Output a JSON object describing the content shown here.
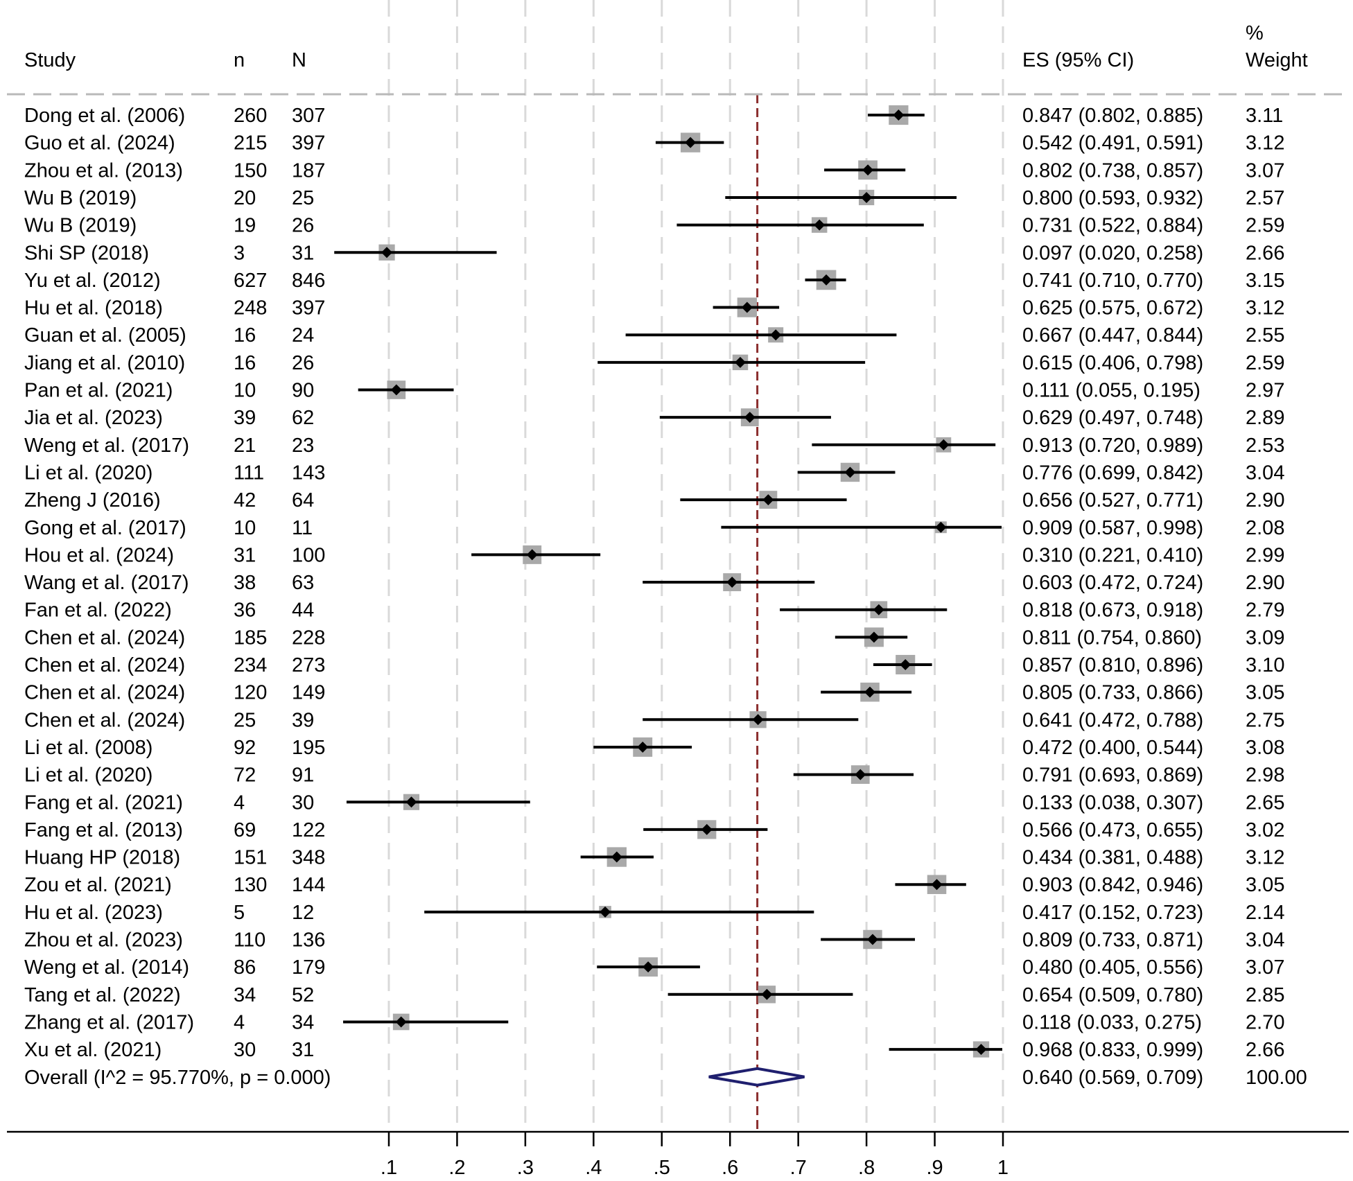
{
  "headers": {
    "study": "Study",
    "n": "n",
    "N": "N",
    "es": "ES (95% CI)",
    "weight_line1": "%",
    "weight_line2": "Weight"
  },
  "colors": {
    "marker": "#000000",
    "weight_box": "#a9a9a9",
    "ci_line": "#000000",
    "null_line": "#8b2e2e",
    "grid": "#d9d9d9",
    "diamond": "#1f1f6e"
  },
  "chart_data": {
    "type": "forest",
    "xlim": [
      0.1,
      1.0
    ],
    "ticks": [
      0.1,
      0.2,
      0.3,
      0.4,
      0.5,
      0.6,
      0.7,
      0.8,
      0.9,
      1.0
    ],
    "tick_labels": [
      ".1",
      ".2",
      ".3",
      ".4",
      ".5",
      ".6",
      ".7",
      ".8",
      ".9",
      "1"
    ],
    "studies": [
      {
        "study": "Dong et al. (2006)",
        "n": "260",
        "N": "307",
        "es": 0.847,
        "lo": 0.802,
        "hi": 0.885,
        "es_text": "0.847 (0.802, 0.885)",
        "weight": "3.11"
      },
      {
        "study": "Guo et al. (2024)",
        "n": "215",
        "N": "397",
        "es": 0.542,
        "lo": 0.491,
        "hi": 0.591,
        "es_text": "0.542 (0.491, 0.591)",
        "weight": "3.12"
      },
      {
        "study": "Zhou et al. (2013)",
        "n": "150",
        "N": "187",
        "es": 0.802,
        "lo": 0.738,
        "hi": 0.857,
        "es_text": "0.802 (0.738, 0.857)",
        "weight": "3.07"
      },
      {
        "study": "Wu B (2019)",
        "n": "20",
        "N": "25",
        "es": 0.8,
        "lo": 0.593,
        "hi": 0.932,
        "es_text": "0.800 (0.593, 0.932)",
        "weight": "2.57"
      },
      {
        "study": "Wu B (2019)",
        "n": "19",
        "N": "26",
        "es": 0.731,
        "lo": 0.522,
        "hi": 0.884,
        "es_text": "0.731 (0.522, 0.884)",
        "weight": "2.59"
      },
      {
        "study": "Shi SP (2018)",
        "n": "3",
        "N": "31",
        "es": 0.097,
        "lo": 0.02,
        "hi": 0.258,
        "es_text": "0.097 (0.020, 0.258)",
        "weight": "2.66"
      },
      {
        "study": "Yu et al. (2012)",
        "n": "627",
        "N": "846",
        "es": 0.741,
        "lo": 0.71,
        "hi": 0.77,
        "es_text": "0.741 (0.710, 0.770)",
        "weight": "3.15"
      },
      {
        "study": "Hu et al. (2018)",
        "n": "248",
        "N": "397",
        "es": 0.625,
        "lo": 0.575,
        "hi": 0.672,
        "es_text": "0.625 (0.575, 0.672)",
        "weight": "3.12"
      },
      {
        "study": "Guan et al. (2005)",
        "n": "16",
        "N": "24",
        "es": 0.667,
        "lo": 0.447,
        "hi": 0.844,
        "es_text": "0.667 (0.447, 0.844)",
        "weight": "2.55"
      },
      {
        "study": "Jiang et al. (2010)",
        "n": "16",
        "N": "26",
        "es": 0.615,
        "lo": 0.406,
        "hi": 0.798,
        "es_text": "0.615 (0.406, 0.798)",
        "weight": "2.59"
      },
      {
        "study": "Pan et al. (2021)",
        "n": "10",
        "N": "90",
        "es": 0.111,
        "lo": 0.055,
        "hi": 0.195,
        "es_text": "0.111 (0.055, 0.195)",
        "weight": "2.97"
      },
      {
        "study": "Jia et al. (2023)",
        "n": "39",
        "N": "62",
        "es": 0.629,
        "lo": 0.497,
        "hi": 0.748,
        "es_text": "0.629 (0.497, 0.748)",
        "weight": "2.89"
      },
      {
        "study": "Weng et al. (2017)",
        "n": "21",
        "N": "23",
        "es": 0.913,
        "lo": 0.72,
        "hi": 0.989,
        "es_text": "0.913 (0.720, 0.989)",
        "weight": "2.53"
      },
      {
        "study": "Li et al. (2020)",
        "n": "111",
        "N": "143",
        "es": 0.776,
        "lo": 0.699,
        "hi": 0.842,
        "es_text": "0.776 (0.699, 0.842)",
        "weight": "3.04"
      },
      {
        "study": "Zheng J (2016)",
        "n": "42",
        "N": "64",
        "es": 0.656,
        "lo": 0.527,
        "hi": 0.771,
        "es_text": "0.656 (0.527, 0.771)",
        "weight": "2.90"
      },
      {
        "study": "Gong et al. (2017)",
        "n": "10",
        "N": "11",
        "es": 0.909,
        "lo": 0.587,
        "hi": 0.998,
        "es_text": "0.909 (0.587, 0.998)",
        "weight": "2.08"
      },
      {
        "study": "Hou et al. (2024)",
        "n": "31",
        "N": "100",
        "es": 0.31,
        "lo": 0.221,
        "hi": 0.41,
        "es_text": "0.310 (0.221, 0.410)",
        "weight": "2.99"
      },
      {
        "study": "Wang et al. (2017)",
        "n": "38",
        "N": "63",
        "es": 0.603,
        "lo": 0.472,
        "hi": 0.724,
        "es_text": "0.603 (0.472, 0.724)",
        "weight": "2.90"
      },
      {
        "study": "Fan et al. (2022)",
        "n": "36",
        "N": "44",
        "es": 0.818,
        "lo": 0.673,
        "hi": 0.918,
        "es_text": "0.818 (0.673, 0.918)",
        "weight": "2.79"
      },
      {
        "study": "Chen et al. (2024)",
        "n": "185",
        "N": "228",
        "es": 0.811,
        "lo": 0.754,
        "hi": 0.86,
        "es_text": "0.811 (0.754, 0.860)",
        "weight": "3.09"
      },
      {
        "study": "Chen et al. (2024)",
        "n": "234",
        "N": "273",
        "es": 0.857,
        "lo": 0.81,
        "hi": 0.896,
        "es_text": "0.857 (0.810, 0.896)",
        "weight": "3.10"
      },
      {
        "study": "Chen et al. (2024)",
        "n": "120",
        "N": "149",
        "es": 0.805,
        "lo": 0.733,
        "hi": 0.866,
        "es_text": "0.805 (0.733, 0.866)",
        "weight": "3.05"
      },
      {
        "study": "Chen et al. (2024)",
        "n": "25",
        "N": "39",
        "es": 0.641,
        "lo": 0.472,
        "hi": 0.788,
        "es_text": "0.641 (0.472, 0.788)",
        "weight": "2.75"
      },
      {
        "study": "Li et al. (2008)",
        "n": "92",
        "N": "195",
        "es": 0.472,
        "lo": 0.4,
        "hi": 0.544,
        "es_text": "0.472 (0.400, 0.544)",
        "weight": "3.08"
      },
      {
        "study": "Li et al. (2020)",
        "n": "72",
        "N": "91",
        "es": 0.791,
        "lo": 0.693,
        "hi": 0.869,
        "es_text": "0.791 (0.693, 0.869)",
        "weight": "2.98"
      },
      {
        "study": "Fang et al. (2021)",
        "n": "4",
        "N": "30",
        "es": 0.133,
        "lo": 0.038,
        "hi": 0.307,
        "es_text": "0.133 (0.038, 0.307)",
        "weight": "2.65"
      },
      {
        "study": "Fang et al. (2013)",
        "n": "69",
        "N": "122",
        "es": 0.566,
        "lo": 0.473,
        "hi": 0.655,
        "es_text": "0.566 (0.473, 0.655)",
        "weight": "3.02"
      },
      {
        "study": "Huang HP (2018)",
        "n": "151",
        "N": "348",
        "es": 0.434,
        "lo": 0.381,
        "hi": 0.488,
        "es_text": "0.434 (0.381, 0.488)",
        "weight": "3.12"
      },
      {
        "study": "Zou et al. (2021)",
        "n": "130",
        "N": "144",
        "es": 0.903,
        "lo": 0.842,
        "hi": 0.946,
        "es_text": "0.903 (0.842, 0.946)",
        "weight": "3.05"
      },
      {
        "study": "Hu et al. (2023)",
        "n": "5",
        "N": "12",
        "es": 0.417,
        "lo": 0.152,
        "hi": 0.723,
        "es_text": "0.417 (0.152, 0.723)",
        "weight": "2.14"
      },
      {
        "study": "Zhou et al. (2023)",
        "n": "110",
        "N": "136",
        "es": 0.809,
        "lo": 0.733,
        "hi": 0.871,
        "es_text": "0.809 (0.733, 0.871)",
        "weight": "3.04"
      },
      {
        "study": "Weng et al. (2014)",
        "n": "86",
        "N": "179",
        "es": 0.48,
        "lo": 0.405,
        "hi": 0.556,
        "es_text": "0.480 (0.405, 0.556)",
        "weight": "3.07"
      },
      {
        "study": "Tang et al. (2022)",
        "n": "34",
        "N": "52",
        "es": 0.654,
        "lo": 0.509,
        "hi": 0.78,
        "es_text": "0.654 (0.509, 0.780)",
        "weight": "2.85"
      },
      {
        "study": "Zhang et al. (2017)",
        "n": "4",
        "N": "34",
        "es": 0.118,
        "lo": 0.033,
        "hi": 0.275,
        "es_text": "0.118 (0.033, 0.275)",
        "weight": "2.70"
      },
      {
        "study": "Xu et al. (2021)",
        "n": "30",
        "N": "31",
        "es": 0.968,
        "lo": 0.833,
        "hi": 0.999,
        "es_text": "0.968 (0.833, 0.999)",
        "weight": "2.66"
      }
    ],
    "overall": {
      "label": "Overall  (I^2 = 95.770%, p = 0.000)",
      "es": 0.64,
      "lo": 0.569,
      "hi": 0.709,
      "es_text": "0.640 (0.569, 0.709)",
      "weight": "100.00"
    }
  }
}
